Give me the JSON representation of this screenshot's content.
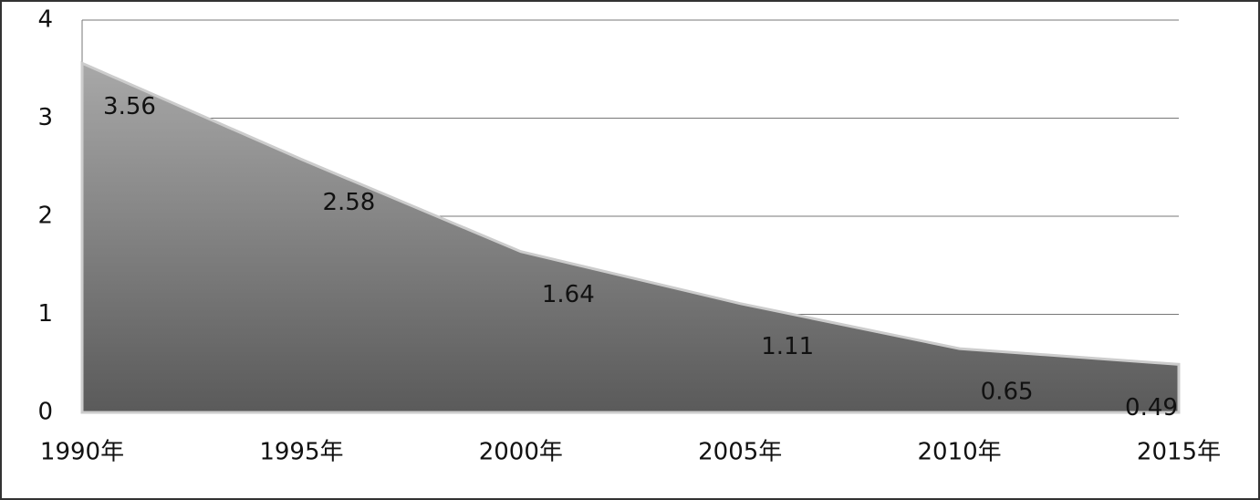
{
  "chart_data": {
    "type": "area",
    "categories": [
      "1990年",
      "1995年",
      "2000年",
      "2005年",
      "2010年",
      "2015年"
    ],
    "values": [
      3.56,
      2.58,
      1.64,
      1.11,
      0.65,
      0.49
    ],
    "color": "#808080",
    "ylim": [
      0,
      4
    ],
    "yticks": [
      0,
      1,
      2,
      3,
      4
    ],
    "grid": true
  }
}
